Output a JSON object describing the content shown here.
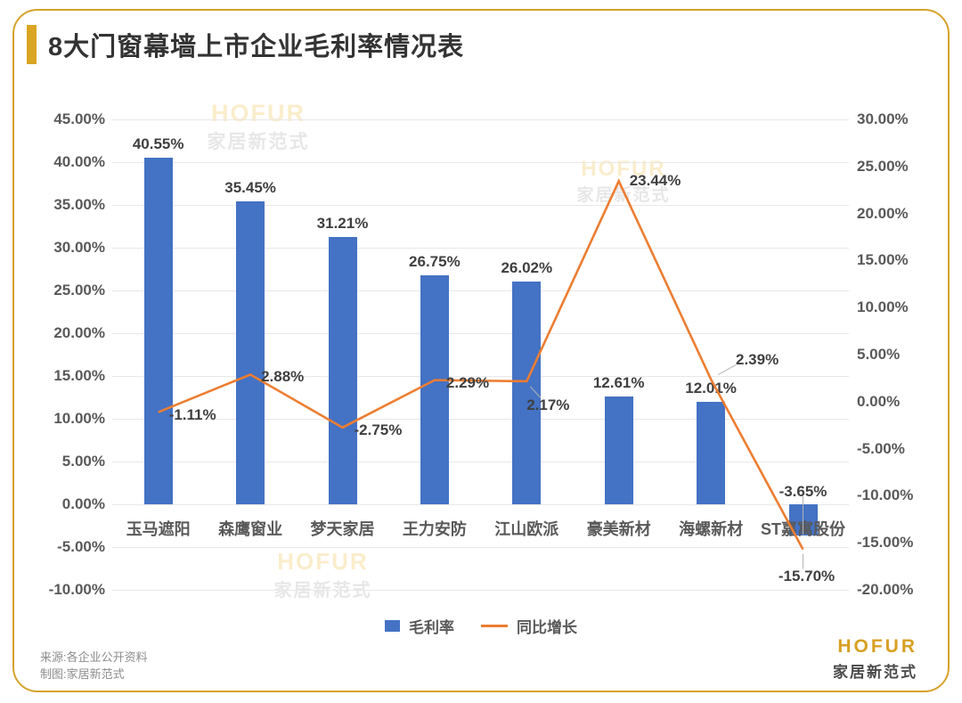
{
  "page": {
    "title": "8大门窗幕墙上市企业毛利率情况表",
    "source_line1": "来源:各企业公开资料",
    "source_line2": "制图:家居新范式",
    "logo": {
      "name": "HOFUR",
      "subtitle": "家居新范式"
    },
    "watermark": {
      "line1": "HOFUR",
      "line2": "家居新范式"
    },
    "colors": {
      "accent_gold": "#d5a32b",
      "bar_blue": "#4472c4",
      "line_orange": "#ed7d31",
      "label_text": "#3f3f3f",
      "axis_text": "#595959",
      "gridline": "#e8e8e8"
    }
  },
  "chart_data": {
    "type": "bar",
    "subtype": "combo bar+line, dual axis",
    "title": "8大门窗幕墙上市企业毛利率情况表",
    "categories": [
      "玉马遮阳",
      "森鹰窗业",
      "梦天家居",
      "王力安防",
      "江山欧派",
      "豪美新材",
      "海螺新材",
      "ST嘉寓股份"
    ],
    "series": [
      {
        "name": "毛利率",
        "type": "bar",
        "axis": "left",
        "color": "#4472c4",
        "values": [
          40.55,
          35.45,
          31.21,
          26.75,
          26.02,
          12.61,
          12.01,
          -3.65
        ]
      },
      {
        "name": "同比增长",
        "type": "line",
        "axis": "right",
        "color": "#ed7d31",
        "values": [
          -1.11,
          2.88,
          -2.75,
          2.29,
          2.17,
          23.44,
          2.39,
          -15.7
        ]
      }
    ],
    "left_axis": {
      "min": -10,
      "max": 45,
      "step": 5,
      "tick_labels": [
        "45.00%",
        "40.00%",
        "35.00%",
        "30.00%",
        "25.00%",
        "20.00%",
        "15.00%",
        "10.00%",
        "5.00%",
        "0.00%",
        "-5.00%",
        "-10.00%"
      ]
    },
    "right_axis": {
      "min": -20,
      "max": 30,
      "step": 5,
      "tick_labels": [
        "30.00%",
        "25.00%",
        "20.00%",
        "15.00%",
        "10.00%",
        "5.00%",
        "0.00%",
        "-5.00%",
        "-10.00%",
        "-15.00%",
        "-20.00%"
      ]
    },
    "grid": true,
    "legend": [
      "毛利率",
      "同比增长"
    ],
    "legend_position": "bottom",
    "data_labels_format": "0.00%"
  }
}
